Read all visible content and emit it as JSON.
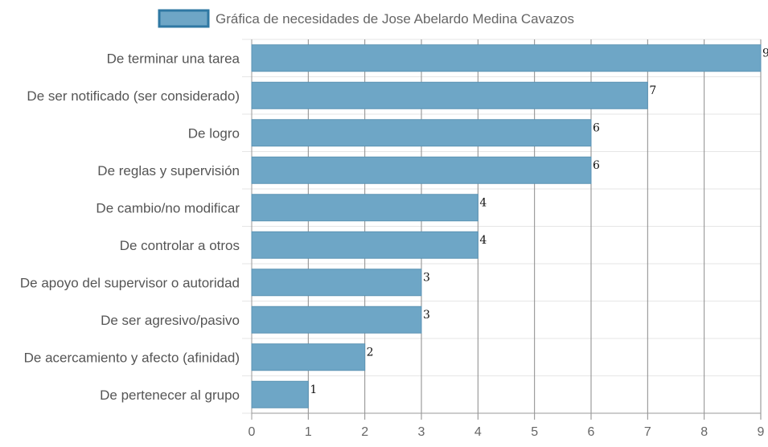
{
  "chart_data": {
    "type": "bar",
    "orientation": "horizontal",
    "title": "",
    "legend": {
      "position": "top",
      "entries": [
        "Gráfica de necesidades de Jose Abelardo Medina Cavazos"
      ]
    },
    "categories": [
      "De terminar una tarea",
      "De ser notificado (ser considerado)",
      "De logro",
      "De reglas y supervisión",
      "De cambio/no modificar",
      "De controlar a otros",
      "De apoyo del supervisor o autoridad",
      "De ser agresivo/pasivo",
      "De acercamiento y afecto (afinidad)",
      "De pertenecer al grupo"
    ],
    "series": [
      {
        "name": "Gráfica de necesidades de Jose Abelardo Medina Cavazos",
        "values": [
          9,
          7,
          6,
          6,
          4,
          4,
          3,
          3,
          2,
          1
        ]
      }
    ],
    "xlim": [
      0,
      9
    ],
    "x_ticks": [
      "0",
      "1",
      "2",
      "3",
      "4",
      "5",
      "6",
      "7",
      "8",
      "9"
    ],
    "grid": true,
    "data_labels": true,
    "colors": {
      "bar_fill": "#6ea6c6",
      "bar_stroke": "#5b93b4",
      "legend_fill": "#6ea6c6",
      "legend_stroke": "#2f78a3",
      "grid_vertical": "#8a8a8a",
      "grid_horizontal": "#e6e6e6",
      "axis": "#999999"
    }
  }
}
